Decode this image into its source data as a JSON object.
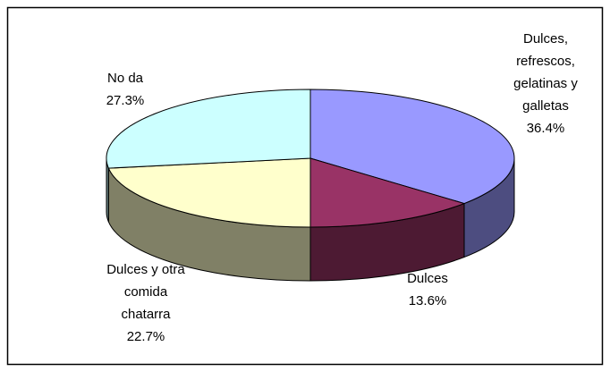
{
  "chart_data": {
    "type": "pie",
    "categories": [
      "Dulces,\nrefrescos,\ngelatinas y\ngalletas",
      "Dulces",
      "Dulces y otra\ncomida\nchatarra",
      "No da"
    ],
    "values": [
      36.4,
      13.6,
      22.7,
      27.3
    ],
    "value_labels": [
      "36.4%",
      "13.6%",
      "22.7%",
      "27.3%"
    ],
    "colors": [
      "#9999ff",
      "#993366",
      "#ffffcc",
      "#ccffff"
    ]
  }
}
